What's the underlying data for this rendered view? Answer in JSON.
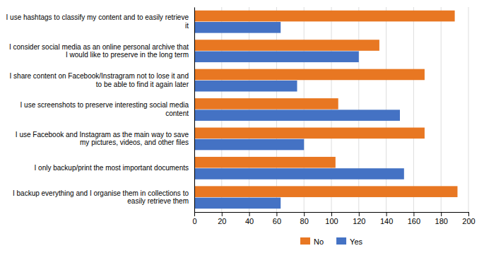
{
  "chart_data": {
    "type": "bar",
    "orientation": "horizontal",
    "categories": [
      "I backup everything and I organise them in collections to\neasily retrieve them",
      "I only backup/print the most important documents",
      "I use Facebook and Instagram as the main way to save\nmy pictures, videos, and other files",
      "I use screenshots to preserve interesting social media\ncontent",
      "I share content on Facebook/Instragram not to lose it and\nto be able to find it again later",
      "I consider social media as an online personal archive that\nI would like to preserve in the long term",
      "I use hashtags to classify my content and to easily retrieve\nit"
    ],
    "series": [
      {
        "name": "No",
        "color": "#E87722",
        "values": [
          192,
          103,
          168,
          105,
          168,
          135,
          190
        ]
      },
      {
        "name": "Yes",
        "color": "#4472C4",
        "values": [
          63,
          153,
          80,
          150,
          75,
          120,
          63
        ]
      }
    ],
    "xlim": [
      0,
      200
    ],
    "xticks": [
      0,
      20,
      40,
      60,
      80,
      100,
      120,
      140,
      160,
      180,
      200
    ],
    "grid": true,
    "legend": "bottom"
  }
}
